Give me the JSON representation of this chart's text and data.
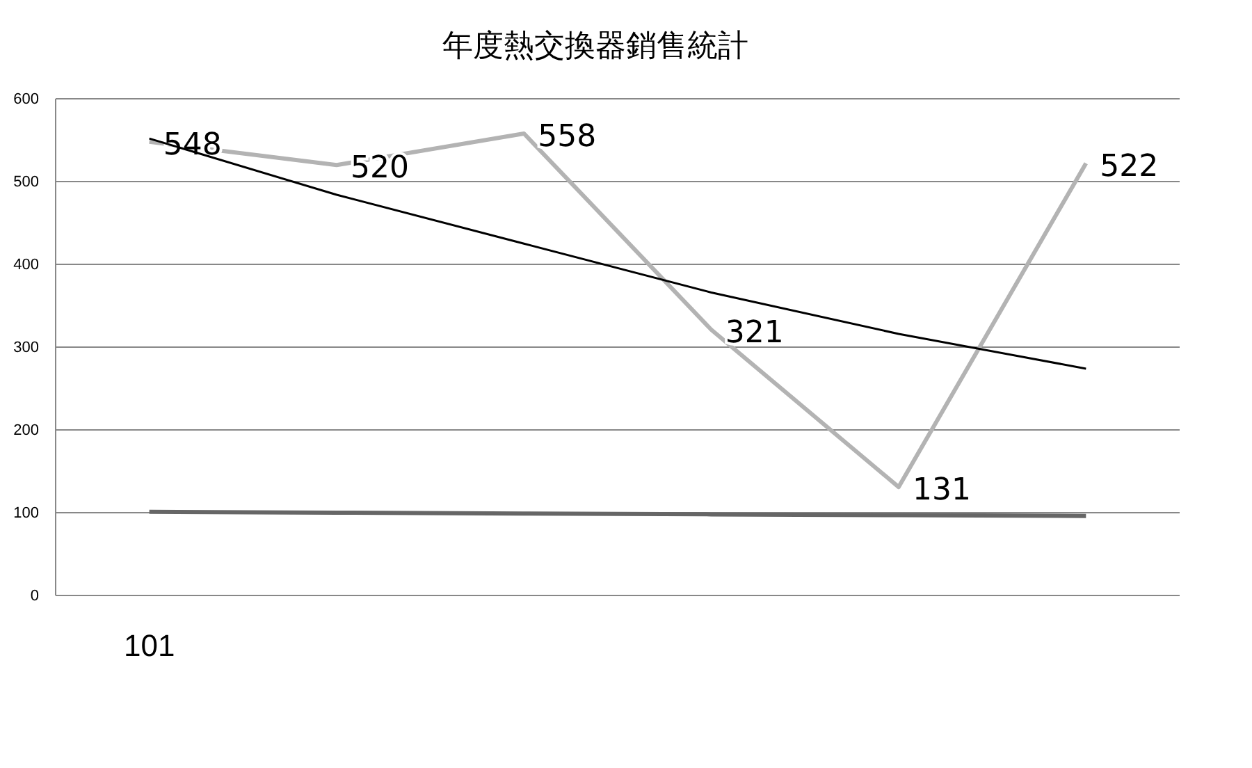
{
  "chart_data": {
    "type": "line",
    "title": "年度熱交換器銷售統計",
    "categories": [
      "101",
      null,
      null,
      null,
      null,
      null
    ],
    "series": [
      {
        "color": "#b3b3b3",
        "values": [
          548,
          520,
          558,
          321,
          131,
          522
        ],
        "value_labels": [
          "548",
          "520",
          "558",
          "321",
          "131",
          "522"
        ]
      },
      {
        "color": "#000000",
        "values": [
          552,
          484,
          425,
          366,
          316,
          274
        ]
      },
      {
        "color": "#666666",
        "values": [
          101,
          100,
          99,
          98,
          97,
          96
        ]
      }
    ],
    "ylim": [
      0,
      600
    ],
    "yticks": [
      0,
      100,
      200,
      300,
      400,
      500,
      600
    ],
    "grid": "y",
    "marker": "none",
    "line_style": "solid"
  }
}
